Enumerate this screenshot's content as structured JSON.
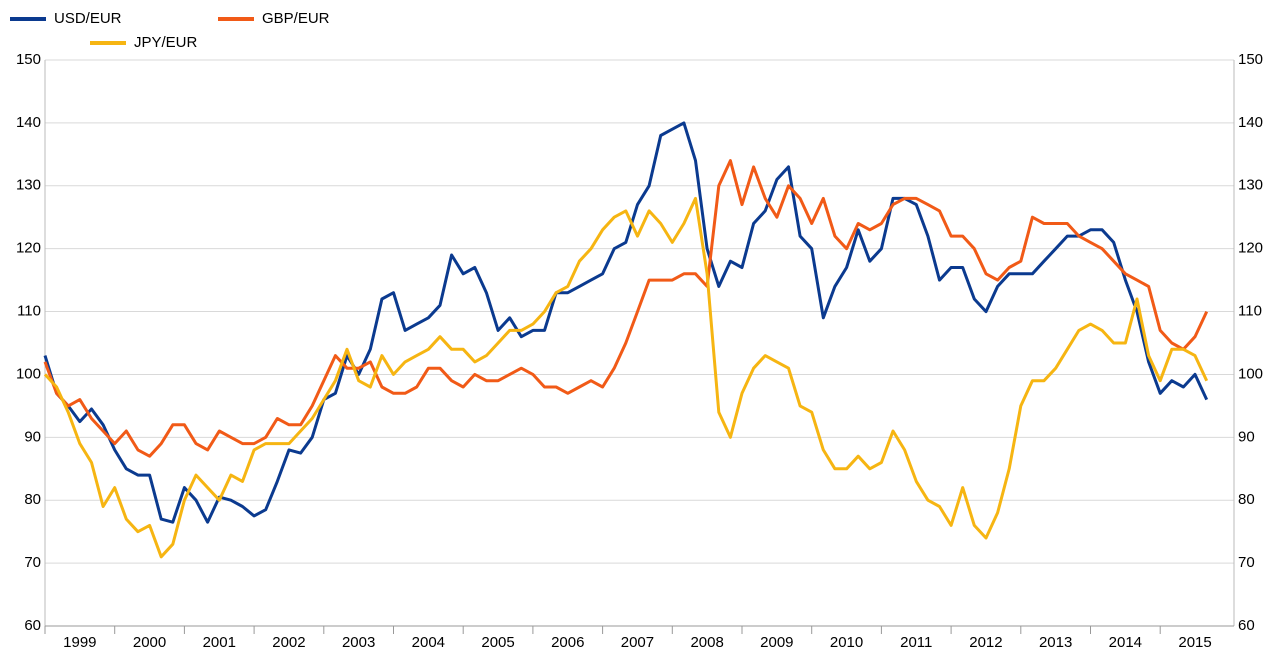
{
  "chart_data": {
    "type": "line",
    "categories": [
      null,
      null,
      null,
      "1999",
      null,
      null,
      null,
      null,
      null,
      "2000",
      null,
      null,
      null,
      null,
      null,
      "2001",
      null,
      null,
      null,
      null,
      null,
      "2002",
      null,
      null,
      null,
      null,
      null,
      "2003",
      null,
      null,
      null,
      null,
      null,
      "2004",
      null,
      null,
      null,
      null,
      null,
      "2005",
      null,
      null,
      null,
      null,
      null,
      "2006",
      null,
      null,
      null,
      null,
      null,
      "2007",
      null,
      null,
      null,
      null,
      null,
      "2008",
      null,
      null,
      null,
      null,
      null,
      "2009",
      null,
      null,
      null,
      null,
      null,
      "2010",
      null,
      null,
      null,
      null,
      null,
      "2011",
      null,
      null,
      null,
      null,
      null,
      "2012",
      null,
      null,
      null,
      null,
      null,
      "2013",
      null,
      null,
      null,
      null,
      null,
      "2014",
      null,
      null,
      null,
      null,
      null,
      "2015",
      null
    ],
    "series": [
      {
        "name": "USD/EUR",
        "color": "#0b3a8f",
        "values": [
          103,
          97,
          95,
          92.5,
          94.5,
          92,
          88,
          85,
          84,
          84,
          77,
          76.5,
          82,
          80,
          76.5,
          80.5,
          80,
          79,
          77.5,
          78.5,
          83,
          88,
          87.5,
          90,
          96,
          97,
          103,
          100,
          104,
          112,
          113,
          107,
          108,
          109,
          111,
          119,
          116,
          117,
          113,
          107,
          109,
          106,
          107,
          107,
          113,
          113,
          114,
          115,
          116,
          120,
          121,
          127,
          130,
          138,
          139,
          140,
          134,
          120,
          114,
          118,
          117,
          124,
          126,
          131,
          133,
          122,
          120,
          109,
          114,
          117,
          123,
          118,
          120,
          128,
          128,
          127,
          122,
          115,
          117,
          117,
          112,
          110,
          114,
          116,
          116,
          116,
          118,
          120,
          122,
          122,
          123,
          123,
          121,
          115,
          110,
          102,
          97,
          99,
          98,
          100,
          96
        ]
      },
      {
        "name": "GBP/EUR",
        "color": "#f15a17",
        "values": [
          102,
          97,
          95,
          96,
          93,
          91,
          89,
          91,
          88,
          87,
          89,
          92,
          92,
          89,
          88,
          91,
          90,
          89,
          89,
          90,
          93,
          92,
          92,
          95,
          99,
          103,
          101,
          101,
          102,
          98,
          97,
          97,
          98,
          101,
          101,
          99,
          98,
          100,
          99,
          99,
          100,
          101,
          100,
          98,
          98,
          97,
          98,
          99,
          98,
          101,
          105,
          110,
          115,
          115,
          115,
          116,
          116,
          114,
          130,
          134,
          127,
          133,
          128,
          125,
          130,
          128,
          124,
          128,
          122,
          120,
          124,
          123,
          124,
          127,
          128,
          128,
          127,
          126,
          122,
          122,
          120,
          116,
          115,
          117,
          118,
          125,
          124,
          124,
          124,
          122,
          121,
          120,
          118,
          116,
          115,
          114,
          107,
          105,
          104,
          106,
          110
        ]
      },
      {
        "name": "JPY/EUR",
        "color": "#f6b512",
        "values": [
          100,
          98,
          94,
          89,
          86,
          79,
          82,
          77,
          75,
          76,
          71,
          73,
          80,
          84,
          82,
          80,
          84,
          83,
          88,
          89,
          89,
          89,
          91,
          93,
          96,
          99,
          104,
          99,
          98,
          103,
          100,
          102,
          103,
          104,
          106,
          104,
          104,
          102,
          103,
          105,
          107,
          107,
          108,
          110,
          113,
          114,
          118,
          120,
          123,
          125,
          126,
          122,
          126,
          124,
          121,
          124,
          128,
          116,
          94,
          90,
          97,
          101,
          103,
          102,
          101,
          95,
          94,
          88,
          85,
          85,
          87,
          85,
          86,
          91,
          88,
          83,
          80,
          79,
          76,
          82,
          76,
          74,
          78,
          85,
          95,
          99,
          99,
          101,
          104,
          107,
          108,
          107,
          105,
          105,
          112,
          103,
          99,
          104,
          104,
          103,
          99
        ]
      }
    ],
    "ylim": [
      60,
      150
    ],
    "yticks": [
      60,
      70,
      80,
      90,
      100,
      110,
      120,
      130,
      140,
      150
    ],
    "grid": true
  }
}
